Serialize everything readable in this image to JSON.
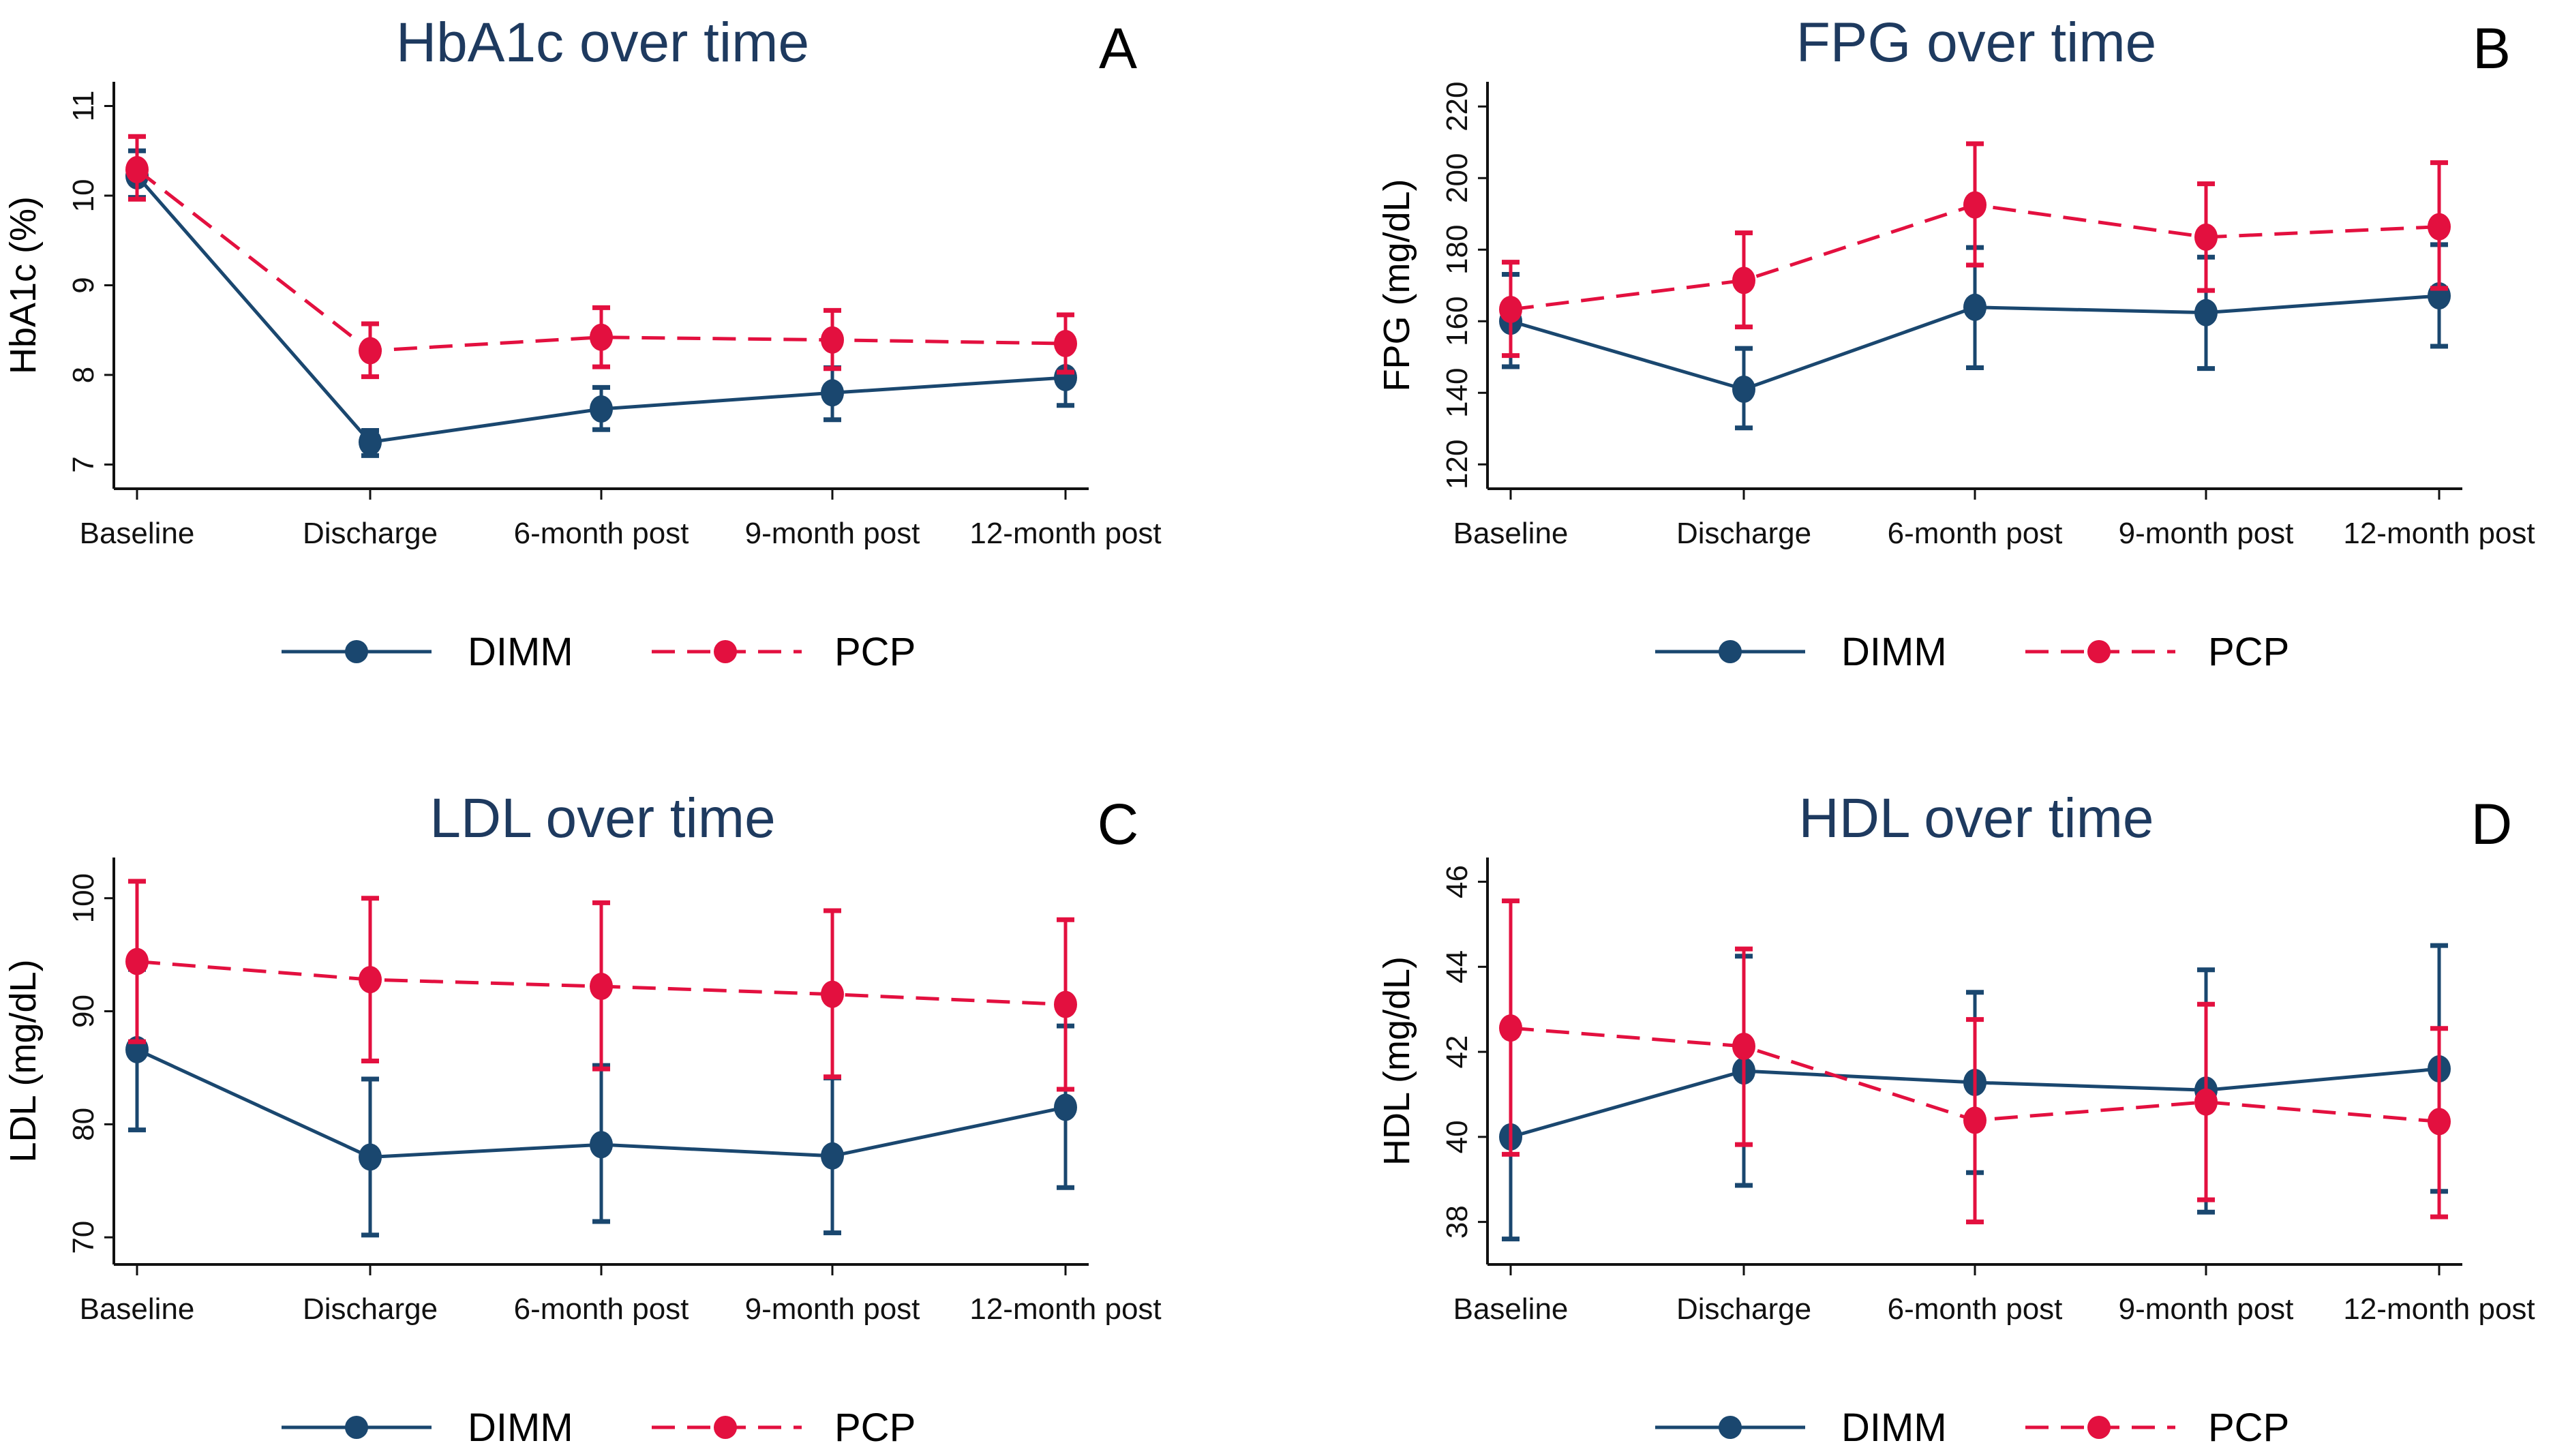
{
  "colors": {
    "DIMM": "#1a476f",
    "PCP": "#e3103f",
    "title": "#1e3a5f"
  },
  "legend": {
    "DIMM": "DIMM",
    "PCP": "PCP"
  },
  "chart_data": [
    {
      "type": "line",
      "panel": "A",
      "title": "HbA1c over time",
      "ylabel": "HbA1c (%)",
      "xlabel": "",
      "categories": [
        "Baseline",
        "Discharge",
        "6-month post",
        "9-month post",
        "12-month post"
      ],
      "yticks": [
        7,
        8,
        9,
        10,
        11
      ],
      "ylim": [
        6.73,
        11.27
      ],
      "series": [
        {
          "name": "DIMM",
          "style": "solid",
          "values": [
            10.22,
            7.25,
            7.62,
            7.8,
            7.97
          ],
          "lower": [
            9.98,
            7.1,
            7.39,
            7.5,
            7.66
          ],
          "upper": [
            10.5,
            7.38,
            7.86,
            8.08,
            8.3
          ]
        },
        {
          "name": "PCP",
          "style": "dashed",
          "values": [
            10.29,
            8.27,
            8.42,
            8.39,
            8.35
          ],
          "lower": [
            9.96,
            7.98,
            8.09,
            8.07,
            8.03
          ],
          "upper": [
            10.66,
            8.57,
            8.75,
            8.72,
            8.67
          ]
        }
      ]
    },
    {
      "type": "line",
      "panel": "B",
      "title": "FPG over time",
      "ylabel": "FPG (mg/dL)",
      "xlabel": "",
      "categories": [
        "Baseline",
        "Discharge",
        "6-month post",
        "9-month post",
        "12-month post"
      ],
      "yticks": [
        120,
        140,
        160,
        180,
        200,
        220
      ],
      "ylim": [
        113.2,
        226.9
      ],
      "series": [
        {
          "name": "DIMM",
          "style": "solid",
          "values": [
            160.0,
            141.0,
            163.9,
            162.4,
            167.1
          ],
          "lower": [
            147.3,
            130.2,
            147.0,
            146.8,
            153.0
          ],
          "upper": [
            173.1,
            152.4,
            180.6,
            177.9,
            181.4
          ]
        },
        {
          "name": "PCP",
          "style": "dashed",
          "values": [
            163.3,
            171.4,
            192.5,
            183.5,
            186.4
          ],
          "lower": [
            150.4,
            158.4,
            175.7,
            168.6,
            169.2
          ],
          "upper": [
            176.5,
            184.7,
            209.6,
            198.4,
            204.3
          ]
        }
      ]
    },
    {
      "type": "line",
      "panel": "C",
      "title": "LDL over time",
      "ylabel": "LDL (mg/dL)",
      "xlabel": "",
      "categories": [
        "Baseline",
        "Discharge",
        "6-month post",
        "9-month post",
        "12-month post"
      ],
      "yticks": [
        70,
        80,
        90,
        100
      ],
      "ylim": [
        67.6,
        103.6
      ],
      "series": [
        {
          "name": "DIMM",
          "style": "solid",
          "values": [
            86.6,
            77.1,
            78.2,
            77.2,
            81.5
          ],
          "lower": [
            79.5,
            70.2,
            71.4,
            70.4,
            74.4
          ],
          "upper": [
            93.7,
            84.0,
            85.2,
            84.1,
            88.7
          ]
        },
        {
          "name": "PCP",
          "style": "dashed",
          "values": [
            94.4,
            92.8,
            92.2,
            91.5,
            90.6
          ],
          "lower": [
            87.3,
            85.6,
            84.9,
            84.2,
            83.1
          ],
          "upper": [
            101.5,
            100.0,
            99.6,
            98.9,
            98.1
          ]
        }
      ]
    },
    {
      "type": "line",
      "panel": "D",
      "title": "HDL over time",
      "ylabel": "HDL (mg/dL)",
      "xlabel": "",
      "categories": [
        "Baseline",
        "Discharge",
        "6-month post",
        "9-month post",
        "12-month post"
      ],
      "yticks": [
        38,
        40,
        42,
        44,
        46
      ],
      "ylim": [
        37.0,
        46.57
      ],
      "series": [
        {
          "name": "DIMM",
          "style": "solid",
          "values": [
            40.0,
            41.55,
            41.28,
            41.1,
            41.6
          ],
          "lower": [
            37.6,
            38.86,
            39.16,
            38.23,
            38.72
          ],
          "upper": [
            42.4,
            44.25,
            43.4,
            43.93,
            44.5
          ]
        },
        {
          "name": "PCP",
          "style": "dashed",
          "values": [
            42.56,
            42.13,
            40.39,
            40.82,
            40.36
          ],
          "lower": [
            39.59,
            39.82,
            38.0,
            38.52,
            38.12
          ],
          "upper": [
            45.55,
            44.42,
            42.76,
            43.12,
            42.55
          ]
        }
      ]
    }
  ]
}
